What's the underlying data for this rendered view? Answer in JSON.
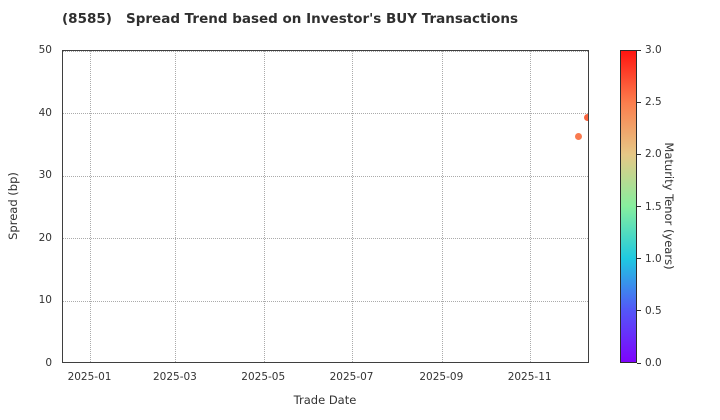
{
  "chart_data": {
    "type": "scatter",
    "title": "(8585)   Spread Trend based on Investor's BUY Transactions",
    "xlabel": "Trade Date",
    "ylabel": "Spread (bp)",
    "grid": {
      "visible": true,
      "style": "dotted",
      "color": "#ababab"
    },
    "legend": "none",
    "x_axis": {
      "range": [
        "2024-12-13",
        "2025-12-12"
      ],
      "ticks": [
        {
          "date": "2025-01-01",
          "label": "2025-01"
        },
        {
          "date": "2025-03-01",
          "label": "2025-03"
        },
        {
          "date": "2025-05-01",
          "label": "2025-05"
        },
        {
          "date": "2025-07-01",
          "label": "2025-07"
        },
        {
          "date": "2025-09-01",
          "label": "2025-09"
        },
        {
          "date": "2025-11-01",
          "label": "2025-11"
        }
      ]
    },
    "y_axis": {
      "range": [
        0,
        50
      ],
      "ticks": [
        {
          "value": 0,
          "label": "0"
        },
        {
          "value": 10,
          "label": "10"
        },
        {
          "value": 20,
          "label": "20"
        },
        {
          "value": 30,
          "label": "30"
        },
        {
          "value": 40,
          "label": "40"
        },
        {
          "value": 50,
          "label": "50"
        }
      ]
    },
    "points": [
      {
        "trade_date": "2025-12-04",
        "spread_bp": 36.4,
        "maturity_years_est": 2.5,
        "color": "#f97a4f"
      },
      {
        "trade_date": "2025-12-10",
        "spread_bp": 39.3,
        "maturity_years_est": 2.6,
        "color": "#f9643e"
      }
    ],
    "colorbar": {
      "label": "Maturity Tenor (years)",
      "position": "right",
      "range": [
        0.0,
        3.0
      ],
      "ticks": [
        {
          "value": 0.0,
          "label": "0.0"
        },
        {
          "value": 0.5,
          "label": "0.5"
        },
        {
          "value": 1.0,
          "label": "1.0"
        },
        {
          "value": 1.5,
          "label": "1.5"
        },
        {
          "value": 2.0,
          "label": "2.0"
        },
        {
          "value": 2.5,
          "label": "2.5"
        },
        {
          "value": 3.0,
          "label": "3.0"
        }
      ],
      "colormap": "rainbow",
      "gradient_stops": [
        {
          "pos": 0.0,
          "color": "#7e03fc"
        },
        {
          "pos": 0.167,
          "color": "#5357f7"
        },
        {
          "pos": 0.333,
          "color": "#1fc9e0"
        },
        {
          "pos": 0.5,
          "color": "#86ee9e"
        },
        {
          "pos": 0.667,
          "color": "#e6c886"
        },
        {
          "pos": 0.833,
          "color": "#fb7e4d"
        },
        {
          "pos": 1.0,
          "color": "#fe1510"
        }
      ]
    },
    "spine_color": "#3f3f3f"
  }
}
